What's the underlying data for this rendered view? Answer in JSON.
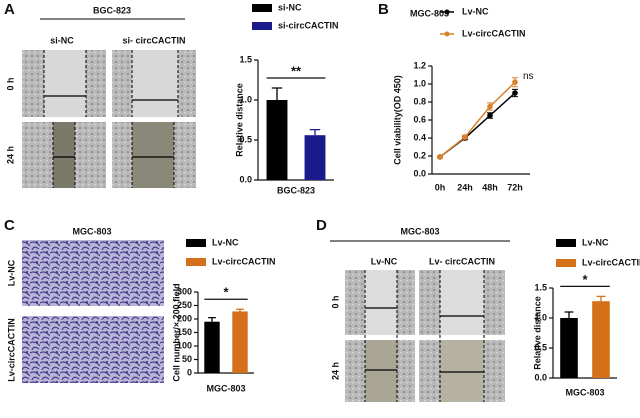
{
  "panels": [
    {
      "letter": "A",
      "title": "BGC-823",
      "columns": [
        "si-NC",
        "si- circCACTIN"
      ],
      "rows": [
        "0 h",
        "24 h"
      ]
    },
    {
      "letter": "B"
    },
    {
      "letter": "C",
      "title": "MGC-803",
      "rows": [
        "Lv-NC",
        "Lv-circCACTIN"
      ]
    },
    {
      "letter": "D",
      "title": "MGC-803",
      "columns": [
        "Lv-NC",
        "Lv- circCACTIN"
      ],
      "rows": [
        "0 h",
        "24 h"
      ]
    }
  ],
  "chart_data": [
    {
      "type": "bar",
      "ylabel": "Relative distance",
      "categories": [
        "BGC-823"
      ],
      "series": [
        {
          "name": "si-NC",
          "color": "#000000",
          "values": [
            1.0
          ],
          "errors": [
            0.15
          ]
        },
        {
          "name": "si-circCACTIN",
          "color": "#1a1a8c",
          "values": [
            0.56
          ],
          "errors": [
            0.07
          ]
        }
      ],
      "ylim": [
        0,
        1.5
      ],
      "yticks": [
        {
          "value": 0,
          "label": "0.0"
        },
        0.5,
        {
          "value": 1,
          "label": "1.0"
        },
        1.5
      ],
      "annotation": "**"
    },
    {
      "type": "line",
      "title": "MGC-803",
      "ylabel": "Cell viability(OD 450)",
      "categories": [
        "0h",
        "24h",
        "48h",
        "72h"
      ],
      "series": [
        {
          "name": "Lv-NC",
          "color": "#000000",
          "values": [
            0.19,
            0.4,
            0.65,
            0.9
          ],
          "errors": [
            0.01,
            0.02,
            0.03,
            0.04
          ]
        },
        {
          "name": "Lv-circCACTIN",
          "color": "#d9822b",
          "values": [
            0.19,
            0.41,
            0.75,
            1.02
          ],
          "errors": [
            0.01,
            0.02,
            0.04,
            0.05
          ]
        }
      ],
      "ylim": [
        0,
        1.2
      ],
      "yticks": [
        {
          "value": 0,
          "label": "0.0"
        },
        0.2,
        0.4,
        0.6,
        0.8,
        {
          "value": 1,
          "label": "1.0"
        },
        1.2
      ],
      "annotation": "ns"
    },
    {
      "type": "bar",
      "ylabel": "Cell number/× 200 field",
      "categories": [
        "MGC-803"
      ],
      "series": [
        {
          "name": "Lv-NC",
          "color": "#000000",
          "values": [
            190
          ],
          "errors": [
            15
          ]
        },
        {
          "name": "Lv-circCACTIN",
          "color": "#d46f1a",
          "values": [
            228
          ],
          "errors": [
            8
          ]
        }
      ],
      "ylim": [
        0,
        300
      ],
      "yticks": [
        0,
        50,
        100,
        150,
        200,
        250,
        300
      ],
      "annotation": "*"
    },
    {
      "type": "bar",
      "ylabel": "Relative distance",
      "categories": [
        "MGC-803"
      ],
      "series": [
        {
          "name": "Lv-NC",
          "color": "#000000",
          "values": [
            1.0
          ],
          "errors": [
            0.1
          ]
        },
        {
          "name": "Lv-circCACTIN",
          "color": "#d46f1a",
          "values": [
            1.28
          ],
          "errors": [
            0.08
          ]
        }
      ],
      "ylim": [
        0,
        1.5
      ],
      "yticks": [
        {
          "value": 0,
          "label": "0.0"
        },
        0.5,
        {
          "value": 1,
          "label": "1.0"
        },
        1.5
      ],
      "annotation": "*"
    }
  ]
}
